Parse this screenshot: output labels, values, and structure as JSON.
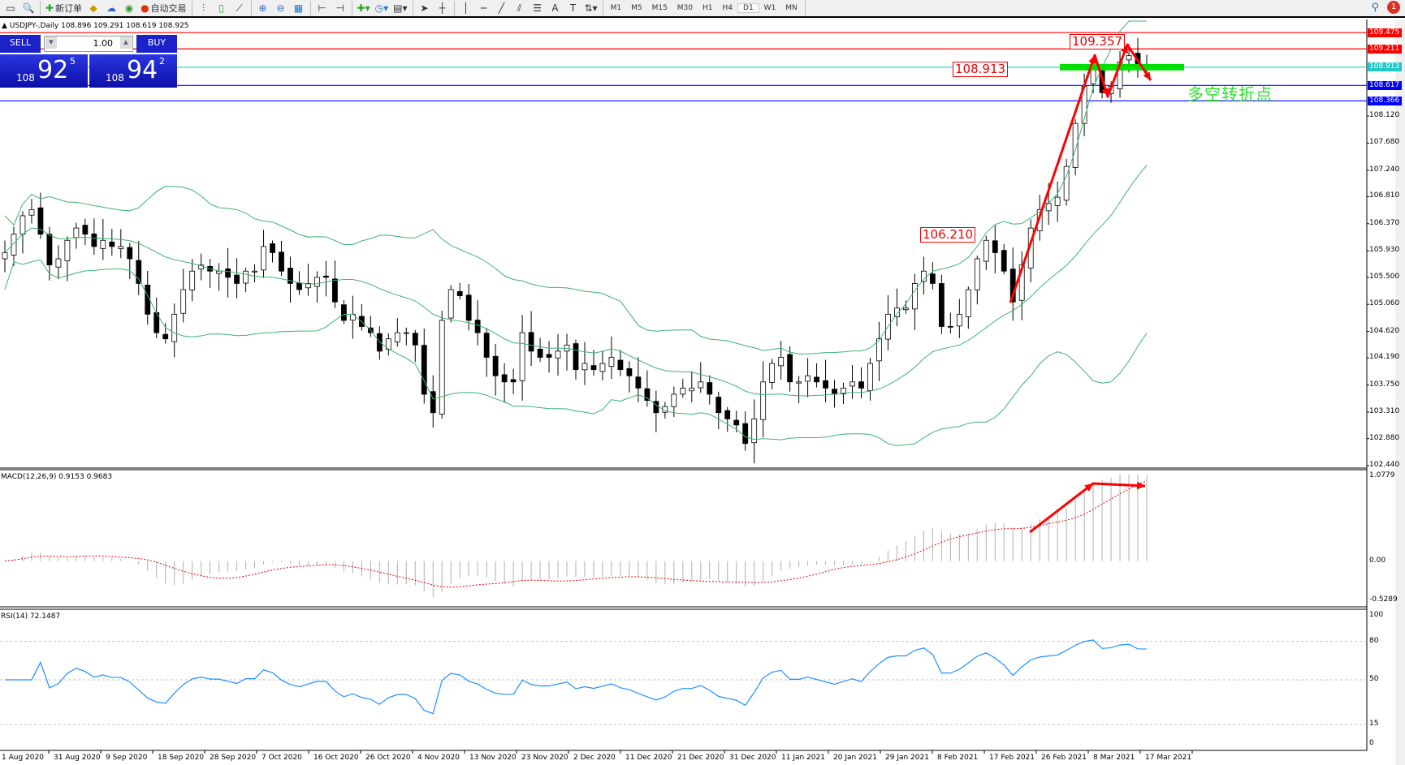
{
  "toolbar": {
    "new_order": "新订单",
    "auto_trading": "自动交易",
    "timeframes": [
      "M1",
      "M5",
      "M15",
      "M30",
      "H1",
      "H4",
      "D1",
      "W1",
      "MN"
    ],
    "active_timeframe": "D1",
    "notification_count": "1"
  },
  "symbol": {
    "title": "USDJPY-,Daily  108.896 109.291 108.619 108.925"
  },
  "trade": {
    "sell_label": "SELL",
    "buy_label": "BUY",
    "lot": "1.00",
    "sell_small": "108",
    "sell_big": "92",
    "sell_pip": "5",
    "buy_small": "108",
    "buy_big": "94",
    "buy_pip": "2"
  },
  "price_axis": [
    "108.120",
    "107.680",
    "107.240",
    "106.810",
    "106.370",
    "105.930",
    "105.500",
    "105.060",
    "104.620",
    "104.190",
    "103.750",
    "103.310",
    "102.880",
    "102.440"
  ],
  "hlines": [
    {
      "value": "109.475",
      "color": "#ff0000"
    },
    {
      "value": "109.211",
      "color": "#ff0000"
    },
    {
      "value": "108.913",
      "color": "#20c8c8"
    },
    {
      "value": "108.617",
      "color": "#0000ff"
    },
    {
      "value": "108.366",
      "color": "#0000ff"
    }
  ],
  "annotations": {
    "label_high": "109.357",
    "label_mid": "108.913",
    "label_low": "106.210",
    "pivot_text": "多空转折点",
    "arrow_color": "#ff0000",
    "pivot_color": "#00e000"
  },
  "macd": {
    "label": "MACD(12,26,9) 0.9153 0.9683",
    "axis": [
      "1.0779",
      "0.00",
      "-0.5289"
    ]
  },
  "rsi": {
    "label": "RSI(14) 72.1487",
    "axis": [
      "100",
      "80",
      "50",
      "15",
      "0"
    ]
  },
  "dates": [
    "1 Aug 2020",
    "31 Aug 2020",
    "9 Sep 2020",
    "18 Sep 2020",
    "28 Sep 2020",
    "7 Oct 2020",
    "16 Oct 2020",
    "26 Oct 2020",
    "4 Nov 2020",
    "13 Nov 2020",
    "23 Nov 2020",
    "2 Dec 2020",
    "11 Dec 2020",
    "21 Dec 2020",
    "31 Dec 2020",
    "11 Jan 2021",
    "20 Jan 2021",
    "29 Jan 2021",
    "8 Feb 2021",
    "17 Feb 2021",
    "26 Feb 2021",
    "8 Mar 2021",
    "17 Mar 2021"
  ],
  "closes": [
    105.9,
    106.2,
    106.5,
    106.6,
    106.2,
    105.7,
    105.8,
    106.1,
    106.3,
    106.2,
    106.0,
    106.1,
    106.0,
    106.0,
    105.8,
    105.4,
    104.9,
    104.6,
    104.5,
    104.9,
    105.3,
    105.6,
    105.7,
    105.6,
    105.6,
    105.5,
    105.4,
    105.6,
    105.6,
    106.0,
    105.9,
    105.6,
    105.4,
    105.3,
    105.4,
    105.5,
    105.5,
    105.1,
    104.8,
    104.9,
    104.7,
    104.6,
    104.3,
    104.5,
    104.6,
    104.6,
    104.4,
    103.6,
    103.3,
    104.8,
    105.3,
    105.2,
    104.8,
    104.6,
    104.2,
    103.9,
    103.8,
    103.8,
    104.6,
    104.3,
    104.2,
    104.2,
    104.3,
    104.4,
    104.0,
    104.1,
    104.0,
    104.1,
    104.2,
    104.0,
    103.9,
    103.7,
    103.5,
    103.3,
    103.4,
    103.6,
    103.7,
    103.7,
    103.8,
    103.6,
    103.3,
    103.2,
    103.1,
    102.8,
    103.2,
    103.8,
    104.1,
    104.2,
    103.8,
    103.8,
    103.9,
    103.8,
    103.7,
    103.6,
    103.7,
    103.8,
    103.7,
    104.1,
    104.5,
    104.9,
    105.0,
    105.0,
    105.4,
    105.6,
    105.4,
    104.7,
    104.7,
    104.9,
    105.3,
    105.8,
    106.1,
    105.9,
    105.6,
    105.1,
    105.7,
    106.3,
    106.6,
    106.7,
    106.8,
    107.3,
    108.0,
    108.6,
    108.9,
    108.5,
    108.6,
    109.0,
    109.1,
    108.9,
    108.9
  ]
}
